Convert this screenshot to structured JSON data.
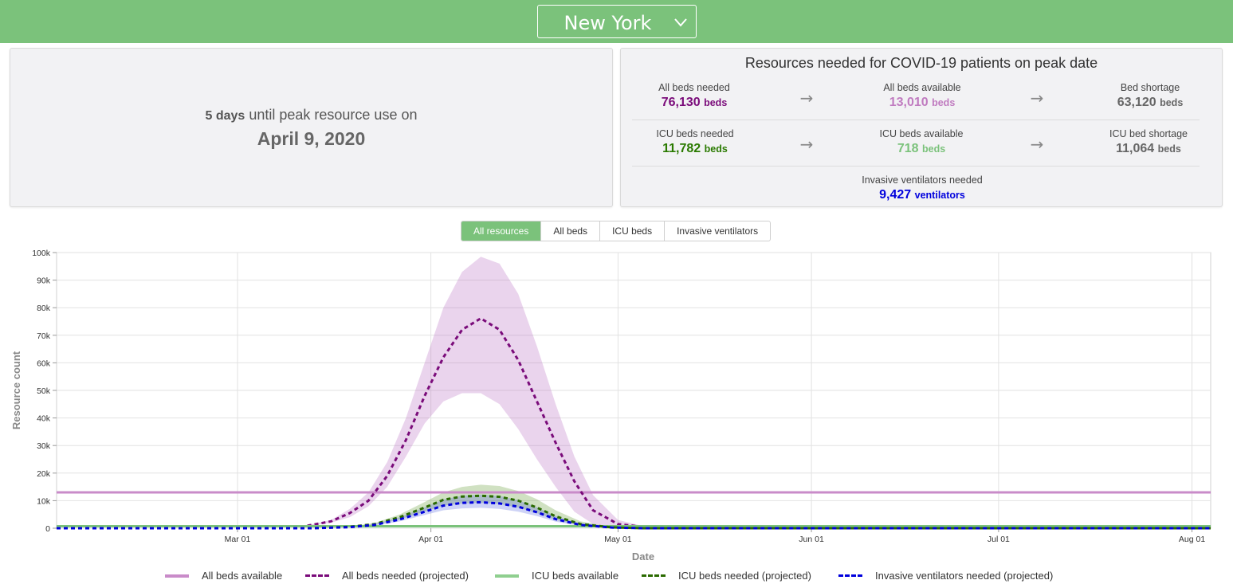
{
  "header": {
    "state": "New York"
  },
  "peak": {
    "days_count": "5 days",
    "days_text": "until peak resource use on",
    "date": "April 9, 2020"
  },
  "resources": {
    "title": "Resources needed for COVID-19 patients on peak date",
    "all_beds_needed": {
      "label": "All beds needed",
      "value": "76,130",
      "unit": "beds",
      "color": "#7a0b7a"
    },
    "all_beds_available": {
      "label": "All beds available",
      "value": "13,010",
      "unit": "beds",
      "color": "#c07bc0"
    },
    "bed_shortage": {
      "label": "Bed shortage",
      "value": "63,120",
      "unit": "beds",
      "color": "#666666"
    },
    "icu_beds_needed": {
      "label": "ICU beds needed",
      "value": "11,782",
      "unit": "beds",
      "color": "#2a7a00"
    },
    "icu_beds_available": {
      "label": "ICU beds available",
      "value": "718",
      "unit": "beds",
      "color": "#7bc27b"
    },
    "icu_bed_shortage": {
      "label": "ICU bed shortage",
      "value": "11,064",
      "unit": "beds",
      "color": "#666666"
    },
    "ventilators": {
      "label": "Invasive ventilators needed",
      "value": "9,427",
      "unit": "ventilators",
      "color": "#0000dd"
    }
  },
  "tabs": [
    "All resources",
    "All beds",
    "ICU beds",
    "Invasive ventilators"
  ],
  "active_tab": "All resources",
  "chart_data": {
    "type": "line",
    "xlabel": "Date",
    "ylabel": "Resource count",
    "x_ticks": [
      "Mar 01",
      "Apr 01",
      "May 01",
      "Jun 01",
      "Jul 01",
      "Aug 01"
    ],
    "y_ticks": [
      "0",
      "10k",
      "20k",
      "30k",
      "40k",
      "50k",
      "60k",
      "70k",
      "80k",
      "90k",
      "100k"
    ],
    "ylim": [
      0,
      100000
    ],
    "xlim": [
      "2020-02-01",
      "2020-08-04"
    ],
    "grid": true,
    "legend_position": "bottom",
    "series": [
      {
        "name": "All beds available",
        "style": "solid",
        "color": "#c98bc9",
        "x": [
          "2020-02-01",
          "2020-08-04"
        ],
        "y": [
          13010,
          13010
        ]
      },
      {
        "name": "All beds needed (projected)",
        "style": "dashed",
        "color": "#7a0b7a",
        "x": [
          "2020-02-01",
          "2020-03-10",
          "2020-03-16",
          "2020-03-19",
          "2020-03-22",
          "2020-03-25",
          "2020-03-28",
          "2020-03-31",
          "2020-04-03",
          "2020-04-06",
          "2020-04-09",
          "2020-04-12",
          "2020-04-15",
          "2020-04-18",
          "2020-04-21",
          "2020-04-24",
          "2020-04-27",
          "2020-05-01",
          "2020-05-05",
          "2020-05-10",
          "2020-08-04"
        ],
        "y": [
          0,
          0,
          2500,
          5500,
          10000,
          19000,
          32000,
          48000,
          62000,
          72000,
          76130,
          72000,
          61000,
          46000,
          31000,
          17000,
          6500,
          1500,
          500,
          0,
          0
        ],
        "band_lower": [
          0,
          0,
          2000,
          4000,
          8000,
          15000,
          26000,
          38000,
          46000,
          49000,
          49000,
          45000,
          36000,
          25000,
          15000,
          6000,
          1500,
          400,
          100,
          0,
          0
        ],
        "band_upper": [
          0,
          0,
          3000,
          7000,
          13000,
          24000,
          40000,
          60000,
          80000,
          93000,
          98500,
          96000,
          85000,
          66000,
          45000,
          26000,
          12000,
          3000,
          800,
          0,
          0
        ]
      },
      {
        "name": "ICU beds available",
        "style": "solid",
        "color": "#7bc27b",
        "x": [
          "2020-02-01",
          "2020-08-04"
        ],
        "y": [
          718,
          718
        ]
      },
      {
        "name": "ICU beds needed (projected)",
        "style": "dashed",
        "color": "#2a6a00",
        "x": [
          "2020-02-01",
          "2020-03-13",
          "2020-03-19",
          "2020-03-23",
          "2020-03-27",
          "2020-03-31",
          "2020-04-03",
          "2020-04-06",
          "2020-04-09",
          "2020-04-12",
          "2020-04-15",
          "2020-04-18",
          "2020-04-21",
          "2020-04-25",
          "2020-04-30",
          "2020-05-05",
          "2020-08-04"
        ],
        "y": [
          0,
          0,
          500,
          1500,
          4000,
          7500,
          10300,
          11500,
          11782,
          11400,
          10000,
          7500,
          4300,
          1500,
          300,
          0,
          0
        ],
        "band_lower": [
          0,
          0,
          400,
          1200,
          3200,
          6000,
          8200,
          9000,
          9200,
          8800,
          7500,
          5500,
          3000,
          1000,
          200,
          0,
          0
        ],
        "band_upper": [
          0,
          0,
          600,
          1900,
          5000,
          9500,
          13000,
          15000,
          15800,
          15300,
          13500,
          10500,
          6500,
          2500,
          500,
          0,
          0
        ]
      },
      {
        "name": "Invasive ventilators needed (projected)",
        "style": "dashed",
        "color": "#0000dd",
        "x": [
          "2020-02-01",
          "2020-03-13",
          "2020-03-19",
          "2020-03-23",
          "2020-03-27",
          "2020-03-31",
          "2020-04-03",
          "2020-04-06",
          "2020-04-09",
          "2020-04-12",
          "2020-04-15",
          "2020-04-18",
          "2020-04-21",
          "2020-04-25",
          "2020-04-30",
          "2020-05-05",
          "2020-08-04"
        ],
        "y": [
          0,
          0,
          400,
          1200,
          3200,
          6000,
          8200,
          9200,
          9427,
          9000,
          7800,
          5800,
          3300,
          1200,
          250,
          0,
          0
        ],
        "band_lower": [
          0,
          0,
          300,
          900,
          2500,
          4800,
          6500,
          7200,
          7400,
          7000,
          6000,
          4400,
          2400,
          800,
          150,
          0,
          0
        ],
        "band_upper": [
          0,
          0,
          500,
          1500,
          4000,
          7600,
          10400,
          11800,
          12200,
          11700,
          10200,
          7600,
          4400,
          1600,
          350,
          0,
          0
        ]
      }
    ]
  }
}
